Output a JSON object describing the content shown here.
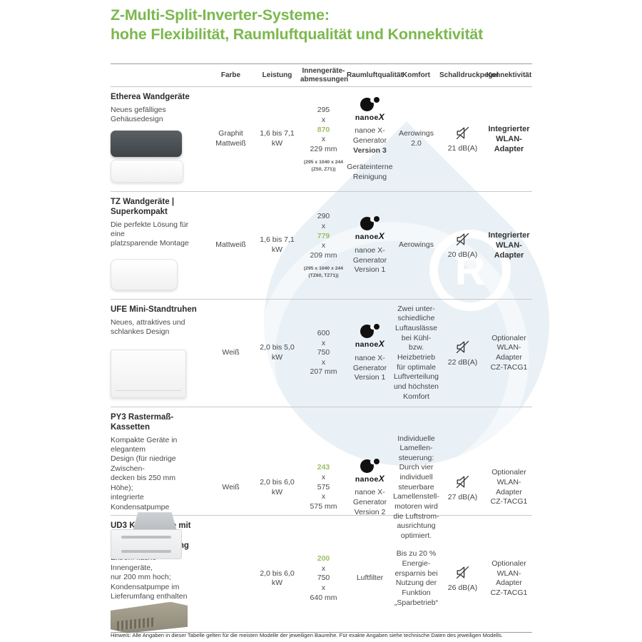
{
  "title": {
    "line1": "Z-Multi-Split-Inverter-Systeme:",
    "line2": "hohe Flexibilität, Raumluftqualität und Konnektivität"
  },
  "colors": {
    "title_green": "#7cb84e",
    "dimension_green": "#9cc161",
    "watermark_blue": "#e9f1f6"
  },
  "nanoe_logo_text": "nanoeX",
  "columns": [
    "Farbe",
    "Leistung",
    "Innengeräte-\nabmessungen",
    "Raumluftqualität",
    "Komfort",
    "Schalldruckpegel",
    "Konnektivität"
  ],
  "rows": [
    {
      "product": "Etherea Wandgeräte",
      "description": "Neues gefälliges\nGehäusedesign",
      "image": "etherea",
      "farbe": "Graphit\nMattweiß",
      "leistung": "1,6 bis 7,1 kW",
      "dims": [
        {
          "v": "295"
        },
        {
          "v": "x"
        },
        {
          "v": "870",
          "green": true
        },
        {
          "v": "x"
        },
        {
          "v": "229 mm"
        }
      ],
      "dims_note": "(295 x 1040 x 244\n(Z50, Z71))",
      "raumluft": {
        "logo": true,
        "text": "nanoe X-\nGenerator",
        "bold_text": "Version 3",
        "extra": "Geräteinterne\nReinigung"
      },
      "komfort": "Aerowings 2.0",
      "schall": "21 dB(A)",
      "konnekt": {
        "text": "Integrierter\nWLAN-\nAdapter",
        "bold": true
      }
    },
    {
      "product": "TZ Wandgeräte |\nSuperkompakt",
      "description": "Die perfekte Lösung für eine\nplatzsparende Montage",
      "image": "tz",
      "farbe": "Mattweiß",
      "leistung": "1,6 bis 7,1 kW",
      "dims": [
        {
          "v": "290"
        },
        {
          "v": "x"
        },
        {
          "v": "779",
          "green": true
        },
        {
          "v": "x"
        },
        {
          "v": "209 mm"
        }
      ],
      "dims_note": "(295 x 1040 x 244\n(TZ60, TZ71))",
      "raumluft": {
        "logo": true,
        "text": "nanoe X-\nGenerator\nVersion 1"
      },
      "komfort": "Aerowings",
      "schall": "20 dB(A)",
      "konnekt": {
        "text": "Integrierter\nWLAN-\nAdapter",
        "bold": true
      }
    },
    {
      "product": "UFE Mini-Standtruhen",
      "description": "Neues, attraktives und\nschlankes Design",
      "image": "ufe",
      "farbe": "Weiß",
      "leistung": "2,0 bis 5,0 kW",
      "dims": [
        {
          "v": "600"
        },
        {
          "v": "x"
        },
        {
          "v": "750"
        },
        {
          "v": "x"
        },
        {
          "v": "207 mm"
        }
      ],
      "dims_note": "",
      "raumluft": {
        "logo": true,
        "text": "nanoe X-\nGenerator\nVersion 1"
      },
      "komfort": "Zwei unter-\nschiedliche\nLuftauslässe\nbei Kühl- bzw.\nHeizbetrieb\nfür optimale\nLuftverteilung\nund höchsten\nKomfort",
      "schall": "22 dB(A)",
      "konnekt": {
        "text": "Optionaler\nWLAN-\nAdapter\nCZ-TACG1",
        "bold": false
      }
    },
    {
      "product": "PY3 Rastermaß-Kassetten",
      "description": "Kompakte Geräte in elegantem\nDesign (für niedrige Zwischen-\ndecken bis 250 mm Höhe);\nintegrierte Kondensatpumpe",
      "image": "py3",
      "farbe": "Weiß",
      "leistung": "2,0 bis 6,0 kW",
      "dims": [
        {
          "v": "243",
          "green": true
        },
        {
          "v": "x"
        },
        {
          "v": "575"
        },
        {
          "v": "x"
        },
        {
          "v": "575 mm"
        }
      ],
      "dims_note": "",
      "raumluft": {
        "logo": true,
        "text": "nanoe X-\nGenerator\nVersion 2"
      },
      "komfort": "Individuelle\nLamellen-\nsteuerung:\nDurch vier\nindividuell\nsteuerbare\nLamellenstell-\nmotoren wird\ndie Luftstrom-\nausrichtung\noptimiert.",
      "schall": "27 dB(A)",
      "konnekt": {
        "text": "Optionaler\nWLAN-\nAdapter\nCZ-TACG1",
        "bold": false
      }
    },
    {
      "product": "UD3 Kanalgeräte mit niedriger\nstatischer Pressung",
      "description": "Extrem flache Innengeräte,\nnur 200 mm hoch;\nKondensatpumpe im\nLieferumfang enthalten",
      "image": "ud3",
      "farbe": "",
      "leistung": "2,0 bis 6,0 kW",
      "dims": [
        {
          "v": "200",
          "green": true
        },
        {
          "v": "x"
        },
        {
          "v": "750"
        },
        {
          "v": "x"
        },
        {
          "v": "640 mm"
        }
      ],
      "dims_note": "",
      "raumluft": {
        "logo": false,
        "text": "Luftfilter"
      },
      "komfort": "Bis zu 20 %\nEnergie-\nersparnis bei\nNutzung der\nFunktion\n„Sparbetrieb“",
      "schall": "26 dB(A)",
      "konnekt": {
        "text": "Optionaler\nWLAN-\nAdapter\nCZ-TACG1",
        "bold": false
      }
    }
  ],
  "footer_note": "Hinweis: Alle Angaben in dieser Tabelle gelten für die meisten Modelle der jeweiligen Baureihe. Für exakte Angaben siehe technische Daten des jeweiligen Modells."
}
